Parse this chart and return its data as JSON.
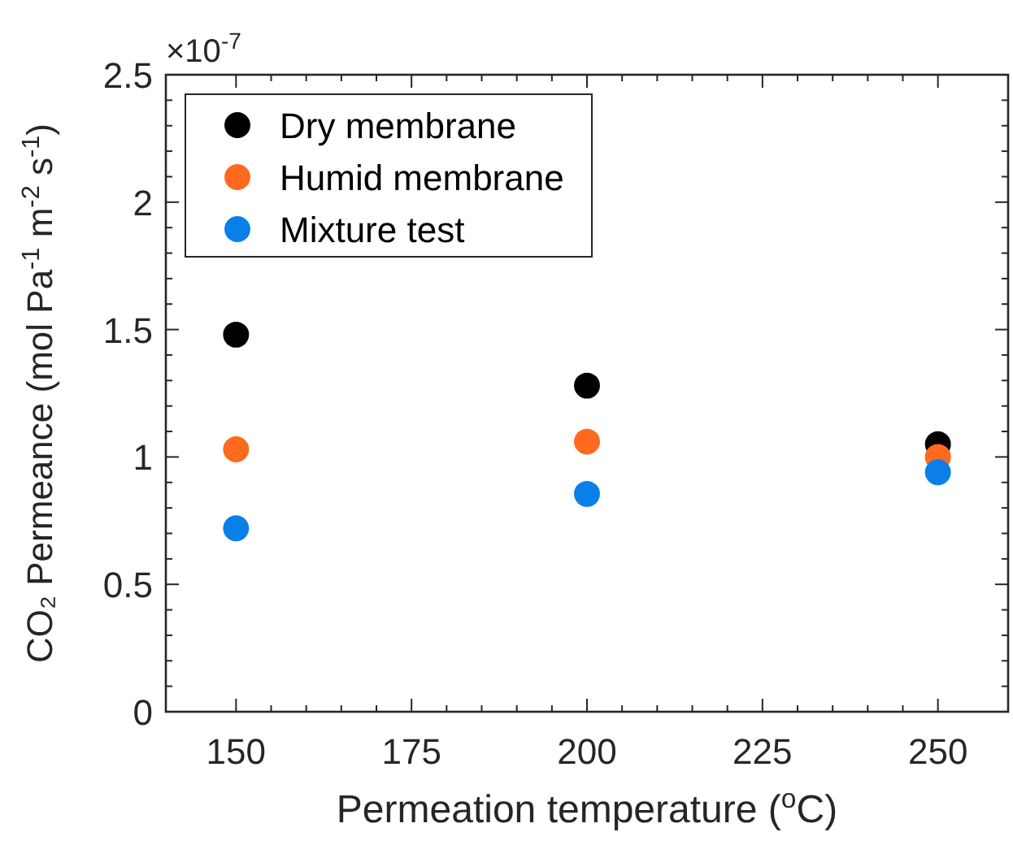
{
  "chart_data": {
    "type": "scatter",
    "xlabel": "Permeation temperature ($^{o}$C)",
    "ylabel": "CO₂ Permeance (mol Pa$^{-1}$ m$^{-2}$ s$^{-1}$)",
    "annotations": [
      "×10$^{-7}$"
    ],
    "x": [
      150,
      200,
      250
    ],
    "series": [
      {
        "name": "Dry membrane",
        "color": "#000000",
        "values": [
          1.48,
          1.28,
          1.05
        ]
      },
      {
        "name": "Humid membrane",
        "color": "#ff6a1f",
        "values": [
          1.03,
          1.06,
          1.0
        ]
      },
      {
        "name": "Mixture test",
        "color": "#0a7fe8",
        "values": [
          0.72,
          0.855,
          0.94
        ]
      }
    ],
    "xlim": [
      140,
      260
    ],
    "xticks": [
      150,
      175,
      200,
      225,
      250
    ],
    "ylim": [
      0,
      2.5
    ],
    "yticks": [
      0,
      0.5,
      1,
      1.5,
      2,
      2.5
    ],
    "legend": "top left",
    "marker": "circle",
    "grid": false
  }
}
